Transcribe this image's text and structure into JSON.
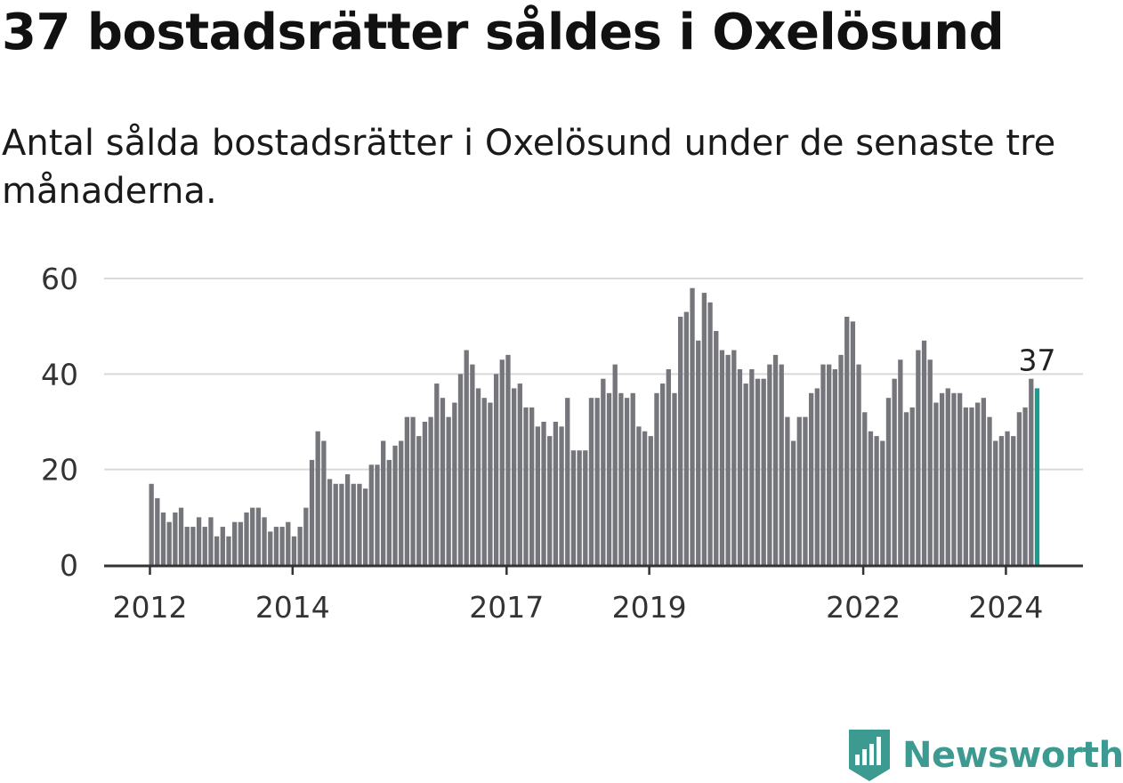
{
  "title": "37 bostadsrätter såldes i Oxelösund",
  "subtitle": "Antal sålda bostadsrätter i Oxelösund under de senaste tre månaderna.",
  "logo": {
    "text": "Newsworthy",
    "icon": "newsworthy-chart-icon"
  },
  "colors": {
    "bar": "#75757c",
    "highlight": "#1a9c8f",
    "grid": "#d9d9d9",
    "axis": "#333333",
    "brand": "#3d9a91"
  },
  "chart_data": {
    "type": "bar",
    "title": "",
    "xlabel": "",
    "ylabel": "",
    "ylim": [
      0,
      60
    ],
    "yticks": [
      "0",
      "20",
      "40",
      "60"
    ],
    "grid": true,
    "x_start": "2012-01",
    "xticks": [
      {
        "label": "2012",
        "date": "2012-01"
      },
      {
        "label": "2014",
        "date": "2014-01"
      },
      {
        "label": "2017",
        "date": "2017-01"
      },
      {
        "label": "2019",
        "date": "2019-01"
      },
      {
        "label": "2022",
        "date": "2022-01"
      },
      {
        "label": "2024",
        "date": "2024-01"
      }
    ],
    "values": [
      17,
      14,
      11,
      9,
      11,
      12,
      8,
      8,
      10,
      8,
      10,
      6,
      8,
      6,
      9,
      9,
      11,
      12,
      12,
      10,
      7,
      8,
      8,
      9,
      6,
      8,
      12,
      22,
      28,
      26,
      18,
      17,
      17,
      19,
      17,
      17,
      16,
      21,
      21,
      26,
      22,
      25,
      26,
      31,
      31,
      27,
      30,
      31,
      38,
      35,
      31,
      34,
      40,
      45,
      42,
      37,
      35,
      34,
      40,
      43,
      44,
      37,
      38,
      33,
      33,
      29,
      30,
      27,
      30,
      29,
      35,
      24,
      24,
      24,
      35,
      35,
      39,
      36,
      42,
      36,
      35,
      36,
      29,
      28,
      27,
      36,
      38,
      41,
      36,
      52,
      53,
      58,
      47,
      57,
      55,
      49,
      45,
      44,
      45,
      41,
      38,
      41,
      39,
      39,
      42,
      44,
      42,
      31,
      26,
      31,
      31,
      36,
      37,
      42,
      42,
      41,
      44,
      52,
      51,
      42,
      32,
      28,
      27,
      26,
      35,
      39,
      43,
      32,
      33,
      45,
      47,
      43,
      34,
      36,
      37,
      36,
      36,
      33,
      33,
      34,
      35,
      31,
      26,
      27,
      28,
      27,
      32,
      33,
      39,
      37
    ],
    "annotation": {
      "label": "37",
      "value": 37,
      "date": "2024-06"
    }
  }
}
